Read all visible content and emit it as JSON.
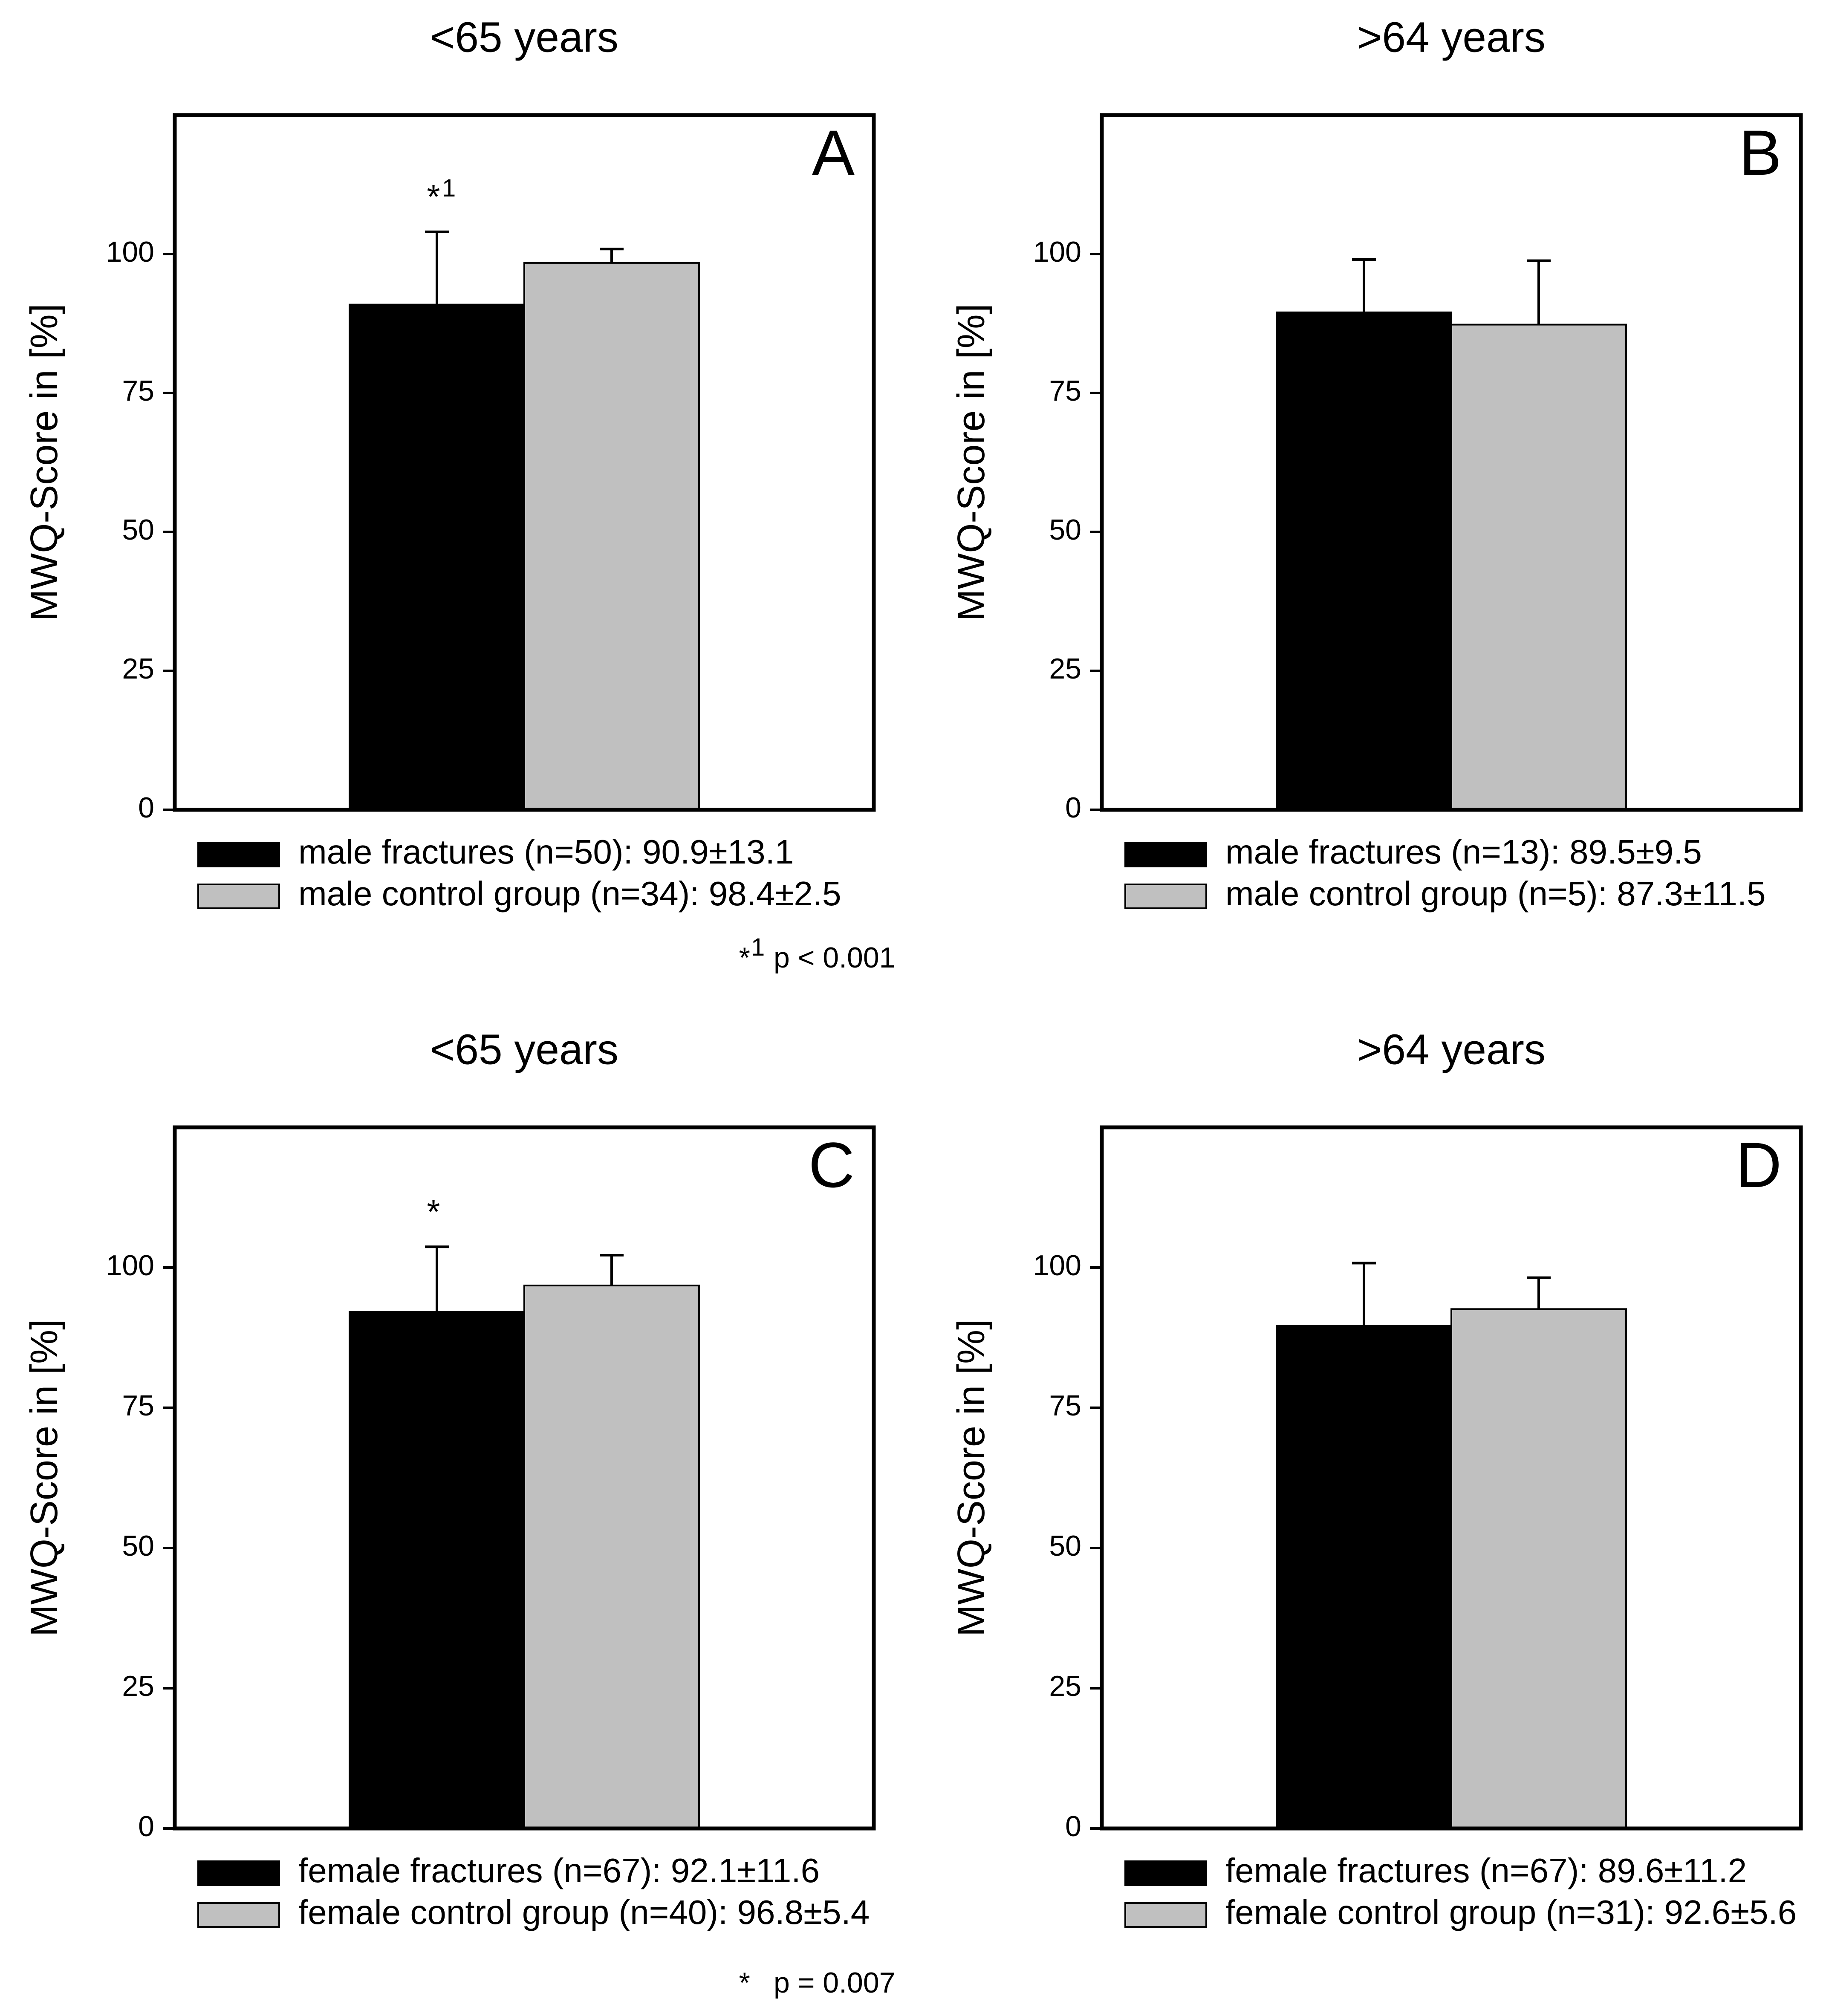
{
  "colors": {
    "fractures": "#000000",
    "control": "#c0c0c0"
  },
  "chart_data": [
    {
      "type": "bar",
      "panel": "A",
      "title": "<65 years",
      "ylabel": "MWQ-Score in [%]",
      "xlabel": "",
      "ylim": [
        0,
        125
      ],
      "yticks": [
        0,
        25,
        50,
        75,
        100
      ],
      "categories": [
        "male fractures",
        "male control group"
      ],
      "series": [
        {
          "name": "male fractures (n=50): 90.9±13.1",
          "value": 90.9,
          "error": 13.1
        },
        {
          "name": "male control group (n=34): 98.4±2.5",
          "value": 98.4,
          "error": 2.5
        }
      ],
      "significance": {
        "marker": "*",
        "sup": "1"
      },
      "footnote": {
        "marker": "*",
        "sup": "1",
        "text": "p < 0.001"
      }
    },
    {
      "type": "bar",
      "panel": "B",
      "title": ">64 years",
      "ylabel": "MWQ-Score in [%]",
      "xlabel": "",
      "ylim": [
        0,
        125
      ],
      "yticks": [
        0,
        25,
        50,
        75,
        100
      ],
      "categories": [
        "male fractures",
        "male control group"
      ],
      "series": [
        {
          "name": "male fractures (n=13): 89.5±9.5",
          "value": 89.5,
          "error": 9.5
        },
        {
          "name": "male control group (n=5): 87.3±11.5",
          "value": 87.3,
          "error": 11.5
        }
      ]
    },
    {
      "type": "bar",
      "panel": "C",
      "title": "<65 years",
      "ylabel": "MWQ-Score in [%]",
      "xlabel": "",
      "ylim": [
        0,
        125
      ],
      "yticks": [
        0,
        25,
        50,
        75,
        100
      ],
      "categories": [
        "female fractures",
        "female control group"
      ],
      "series": [
        {
          "name": "female fractures (n=67): 92.1±11.6",
          "value": 92.1,
          "error": 11.6
        },
        {
          "name": "female control group (n=40): 96.8±5.4",
          "value": 96.8,
          "error": 5.4
        }
      ],
      "significance": {
        "marker": "*",
        "sup": ""
      },
      "footnote": {
        "marker": "*",
        "sup": "",
        "text": "p = 0.007"
      }
    },
    {
      "type": "bar",
      "panel": "D",
      "title": ">64 years",
      "ylabel": "MWQ-Score in [%]",
      "xlabel": "",
      "ylim": [
        0,
        125
      ],
      "yticks": [
        0,
        25,
        50,
        75,
        100
      ],
      "categories": [
        "female fractures",
        "female control group"
      ],
      "series": [
        {
          "name": "female fractures (n=67): 89.6±11.2",
          "value": 89.6,
          "error": 11.2
        },
        {
          "name": "female control group (n=31): 92.6±5.6",
          "value": 92.6,
          "error": 5.6
        }
      ]
    }
  ]
}
